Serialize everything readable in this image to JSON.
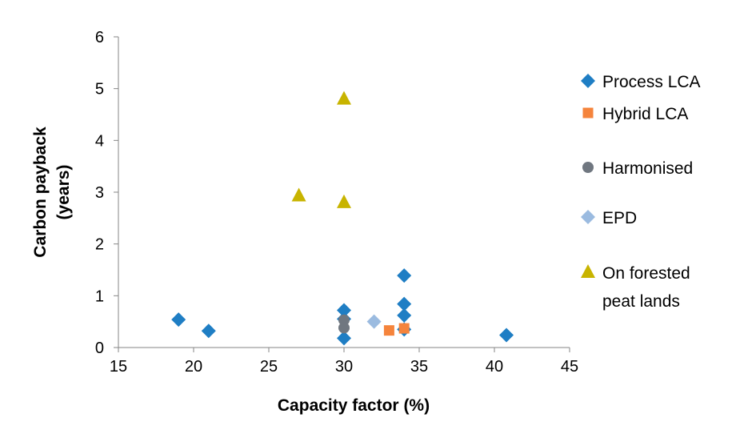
{
  "chart_data": {
    "type": "scatter",
    "xlabel": "Capacity factor (%)",
    "ylabel_lines": [
      "Carbon payback",
      "(years)"
    ],
    "xlim": [
      15,
      45
    ],
    "ylim": [
      0,
      6
    ],
    "x_ticks": [
      15,
      20,
      25,
      30,
      35,
      40,
      45
    ],
    "y_ticks": [
      0,
      1,
      2,
      3,
      4,
      5,
      6
    ],
    "grid": false,
    "legend_position": "right",
    "series": [
      {
        "name": "Process LCA",
        "marker": "diamond",
        "color": "#1F7EC4",
        "points": [
          [
            19,
            0.54
          ],
          [
            21,
            0.32
          ],
          [
            30,
            0.72
          ],
          [
            30,
            0.55
          ],
          [
            30,
            0.18
          ],
          [
            34,
            1.39
          ],
          [
            34,
            0.84
          ],
          [
            34,
            0.62
          ],
          [
            34,
            0.35
          ],
          [
            40.8,
            0.24
          ]
        ]
      },
      {
        "name": "Hybrid LCA",
        "marker": "square",
        "color": "#F5843C",
        "points": [
          [
            33,
            0.33
          ],
          [
            34,
            0.37
          ]
        ]
      },
      {
        "name": "Harmonised",
        "marker": "circle",
        "color": "#707780",
        "points": [
          [
            30,
            0.53
          ],
          [
            30,
            0.38
          ]
        ]
      },
      {
        "name": "EPD",
        "marker": "diamond",
        "color": "#9BBBE0",
        "points": [
          [
            32,
            0.5
          ]
        ]
      },
      {
        "name": "On forested peat lands",
        "legend_lines": [
          "On forested",
          "peat lands"
        ],
        "marker": "triangle",
        "color": "#C8B400",
        "points": [
          [
            27,
            2.93
          ],
          [
            30,
            2.8
          ],
          [
            30,
            4.8
          ]
        ]
      }
    ]
  }
}
